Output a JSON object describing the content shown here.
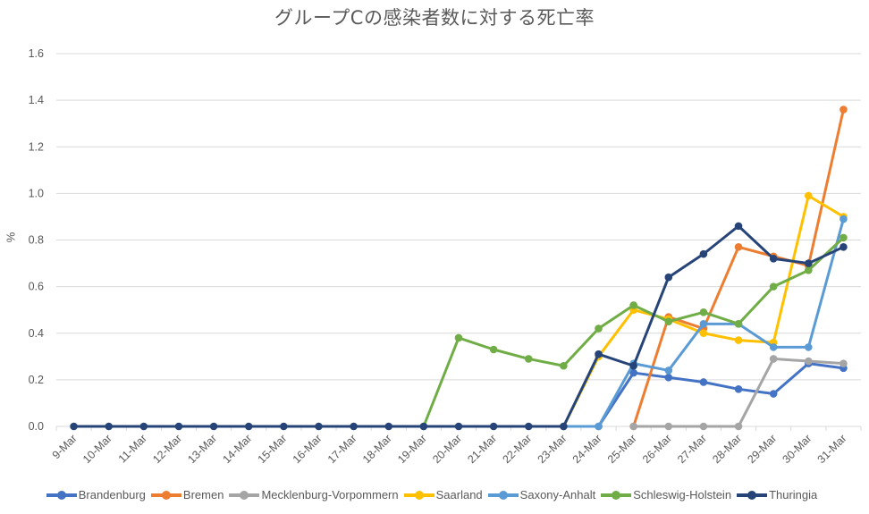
{
  "chart_data": {
    "type": "line",
    "title": "グループCの感染者数に対する死亡率",
    "xlabel": "",
    "ylabel": "%",
    "ylim": [
      0,
      1.6
    ],
    "yticks": [
      "0.0",
      "0.2",
      "0.4",
      "0.6",
      "0.8",
      "1.0",
      "1.2",
      "1.4",
      "1.6"
    ],
    "grid": true,
    "legend_position": "bottom",
    "categories": [
      "9-Mar",
      "10-Mar",
      "11-Mar",
      "12-Mar",
      "13-Mar",
      "14-Mar",
      "15-Mar",
      "16-Mar",
      "17-Mar",
      "18-Mar",
      "19-Mar",
      "20-Mar",
      "21-Mar",
      "22-Mar",
      "23-Mar",
      "24-Mar",
      "25-Mar",
      "26-Mar",
      "27-Mar",
      "28-Mar",
      "29-Mar",
      "30-Mar",
      "31-Mar"
    ],
    "series": [
      {
        "name": "Brandenburg",
        "color": "#4472C4",
        "values": [
          null,
          null,
          null,
          null,
          null,
          null,
          null,
          null,
          null,
          null,
          null,
          null,
          null,
          null,
          null,
          0,
          0.23,
          0.21,
          0.19,
          0.16,
          0.14,
          0.27,
          0.25
        ]
      },
      {
        "name": "Bremen",
        "color": "#ED7D31",
        "values": [
          null,
          null,
          null,
          null,
          null,
          null,
          null,
          null,
          null,
          null,
          null,
          null,
          null,
          null,
          null,
          null,
          0,
          0.47,
          0.42,
          0.77,
          0.73,
          0.69,
          1.36
        ]
      },
      {
        "name": "Mecklenburg-Vorpommern",
        "color": "#A5A5A5",
        "values": [
          null,
          null,
          null,
          null,
          null,
          null,
          null,
          null,
          null,
          null,
          null,
          null,
          null,
          null,
          null,
          null,
          0,
          0,
          0,
          0,
          0.29,
          0.28,
          0.27
        ]
      },
      {
        "name": "Saarland",
        "color": "#FFC000",
        "values": [
          null,
          null,
          null,
          null,
          null,
          null,
          null,
          null,
          null,
          null,
          null,
          null,
          null,
          null,
          0,
          0.3,
          0.5,
          0.46,
          0.4,
          0.37,
          0.36,
          0.99,
          0.9
        ]
      },
      {
        "name": "Saxony-Anhalt",
        "color": "#5B9BD5",
        "values": [
          null,
          null,
          null,
          null,
          null,
          null,
          null,
          null,
          null,
          null,
          null,
          null,
          null,
          null,
          0,
          0,
          0.27,
          0.24,
          0.44,
          0.44,
          0.34,
          0.34,
          0.89
        ]
      },
      {
        "name": "Schleswig-Holstein",
        "color": "#70AD47",
        "values": [
          null,
          null,
          null,
          null,
          null,
          null,
          null,
          null,
          null,
          null,
          0,
          0.38,
          0.33,
          0.29,
          0.26,
          0.42,
          0.52,
          0.45,
          0.49,
          0.44,
          0.6,
          0.67,
          0.81
        ]
      },
      {
        "name": "Thuringia",
        "color": "#264478",
        "values": [
          0,
          0,
          0,
          0,
          0,
          0,
          0,
          0,
          0,
          0,
          0,
          0,
          0,
          0,
          0,
          0.31,
          0.26,
          0.64,
          0.74,
          0.86,
          0.72,
          0.7,
          0.77
        ]
      }
    ]
  }
}
